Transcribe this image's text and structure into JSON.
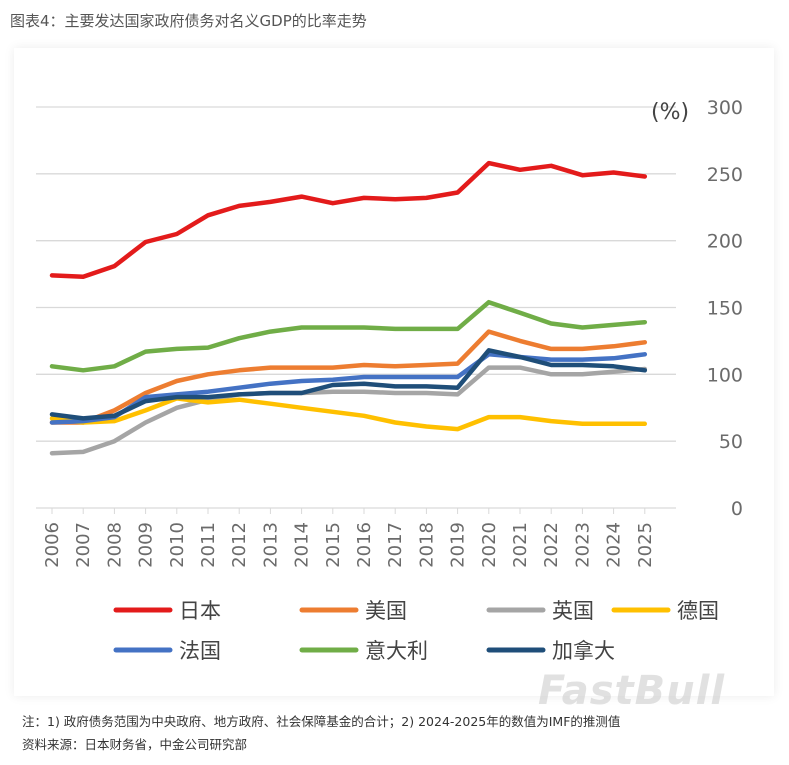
{
  "figure_title": "图表4：主要发达国家政府债务对名义GDP的比率走势",
  "note": "注：1) 政府债务范围为中央政府、地方政府、社会保障基金的合计；2) 2024-2025年的数值为IMF的推测值",
  "source": "资料来源：日本财务省，中金公司研究部",
  "watermark": "FastBull",
  "chart_data": {
    "type": "line",
    "title": "",
    "unit_label": "(%)",
    "xlabel": "",
    "ylabel": "",
    "y_axis_position": "right",
    "ylim": [
      0,
      300
    ],
    "yticks": [
      0,
      50,
      100,
      150,
      200,
      250,
      300
    ],
    "grid": true,
    "legend_position": "bottom",
    "x": [
      "2006",
      "2007",
      "2008",
      "2009",
      "2010",
      "2011",
      "2012",
      "2013",
      "2014",
      "2015",
      "2016",
      "2017",
      "2018",
      "2019",
      "2020",
      "2021",
      "2022",
      "2023",
      "2024",
      "2025"
    ],
    "series": [
      {
        "name": "日本",
        "color": "#e31b1b",
        "values": [
          174,
          173,
          181,
          199,
          205,
          219,
          226,
          229,
          233,
          228,
          232,
          231,
          232,
          236,
          258,
          253,
          256,
          249,
          251,
          248
        ]
      },
      {
        "name": "美国",
        "color": "#ed7d31",
        "values": [
          64,
          64,
          73,
          86,
          95,
          100,
          103,
          105,
          105,
          105,
          107,
          106,
          107,
          108,
          132,
          125,
          119,
          119,
          121,
          124
        ]
      },
      {
        "name": "英国",
        "color": "#a5a5a5",
        "values": [
          41,
          42,
          50,
          64,
          75,
          81,
          85,
          86,
          86,
          87,
          87,
          86,
          86,
          85,
          105,
          105,
          100,
          100,
          102,
          104
        ]
      },
      {
        "name": "德国",
        "color": "#ffc000",
        "values": [
          67,
          64,
          65,
          73,
          82,
          79,
          81,
          78,
          75,
          72,
          69,
          64,
          61,
          59,
          68,
          68,
          65,
          63,
          63,
          63
        ]
      },
      {
        "name": "法国",
        "color": "#4472c4",
        "values": [
          64,
          65,
          68,
          83,
          85,
          87,
          90,
          93,
          95,
          96,
          98,
          98,
          98,
          98,
          115,
          113,
          111,
          111,
          112,
          115
        ]
      },
      {
        "name": "意大利",
        "color": "#70ad47",
        "values": [
          106,
          103,
          106,
          117,
          119,
          120,
          127,
          132,
          135,
          135,
          135,
          134,
          134,
          134,
          154,
          146,
          138,
          135,
          137,
          139
        ]
      },
      {
        "name": "加拿大",
        "color": "#1f4e79",
        "values": [
          70,
          67,
          69,
          80,
          83,
          83,
          85,
          86,
          86,
          92,
          93,
          91,
          91,
          90,
          118,
          113,
          107,
          107,
          106,
          103
        ]
      }
    ]
  }
}
